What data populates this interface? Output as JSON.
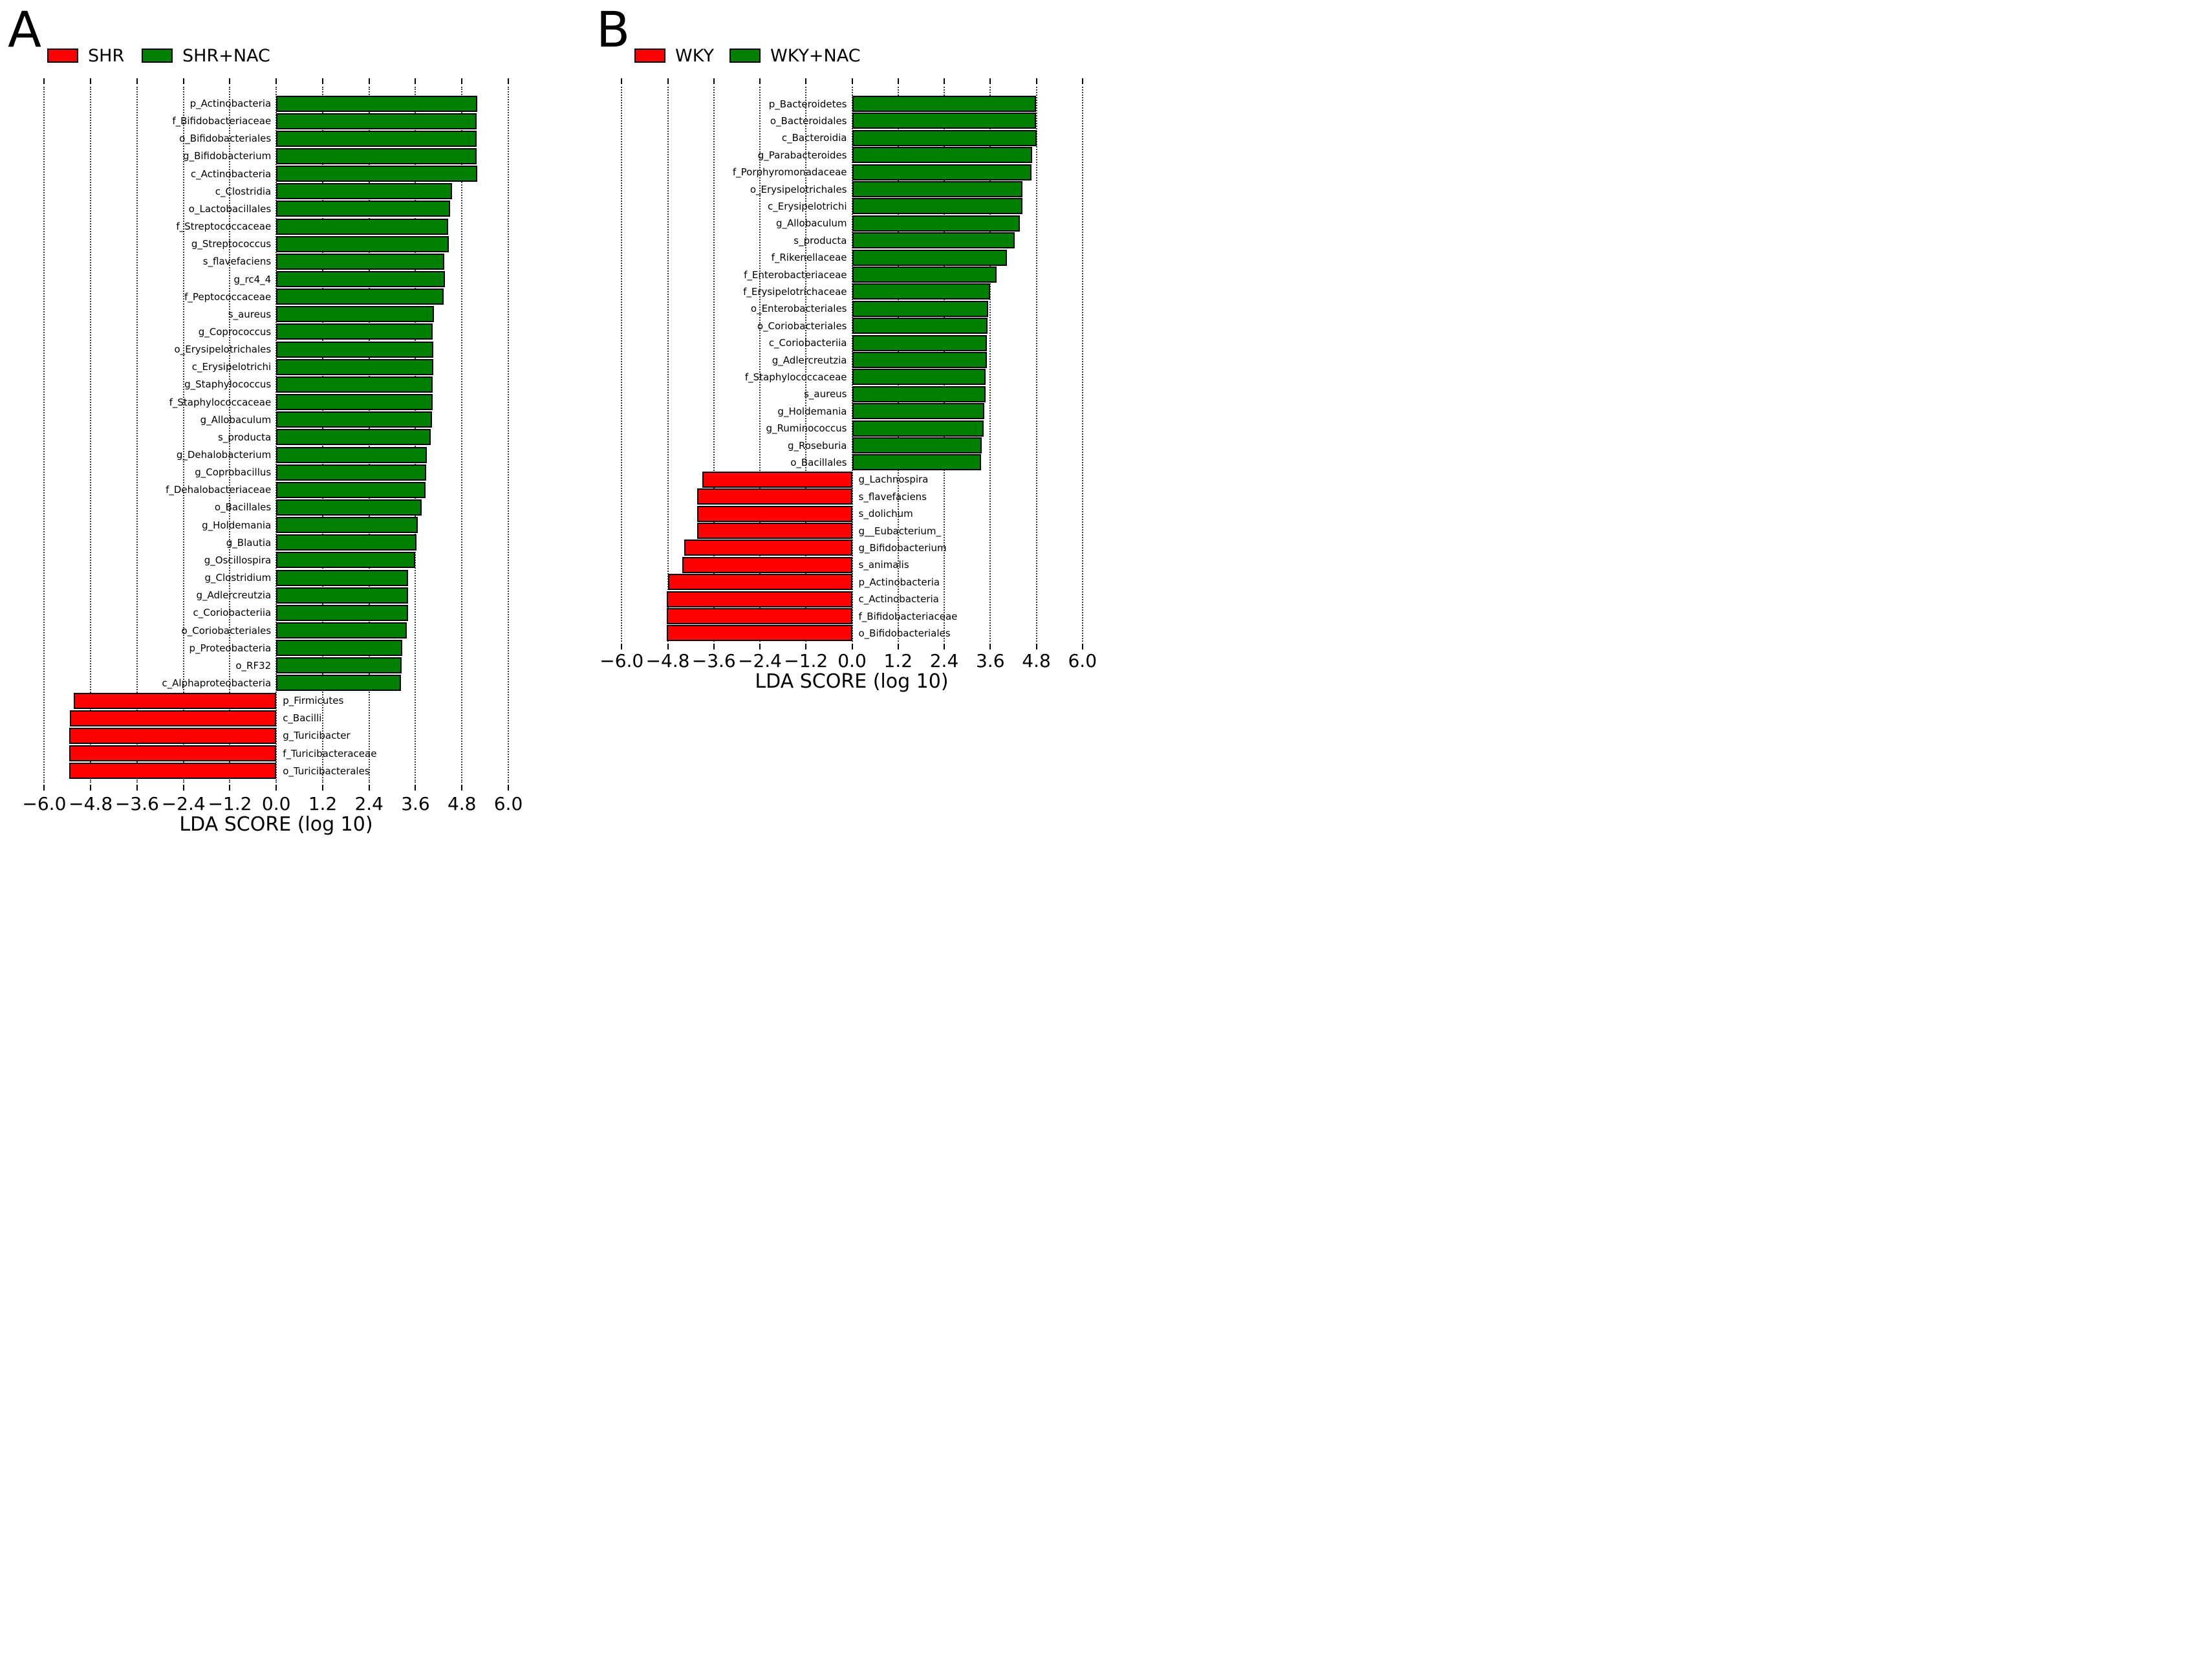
{
  "chart_data": [
    {
      "type": "bar",
      "orientation": "horizontal",
      "panel_label": "A",
      "xlabel": "LDA SCORE (log 10)",
      "x_ticks": [
        -6.0,
        -4.8,
        -3.6,
        -2.4,
        -1.2,
        0.0,
        1.2,
        2.4,
        3.6,
        4.8,
        6.0
      ],
      "xlim": [
        -6.7,
        6.7
      ],
      "grid": "dotted-vertical",
      "legend_position": "top-left",
      "legend": [
        {
          "label": "SHR",
          "color": "#ff0000"
        },
        {
          "label": "SHR+NAC",
          "color": "#008000"
        }
      ],
      "bars": [
        {
          "label": "p_Actinobacteria",
          "value": 5.2,
          "group": "SHR+NAC"
        },
        {
          "label": "f_Bifidobacteriaceae",
          "value": 5.18,
          "group": "SHR+NAC"
        },
        {
          "label": "o_Bifidobacteriales",
          "value": 5.18,
          "group": "SHR+NAC"
        },
        {
          "label": "g_Bifidobacterium",
          "value": 5.18,
          "group": "SHR+NAC"
        },
        {
          "label": "c_Actinobacteria",
          "value": 5.19,
          "group": "SHR+NAC"
        },
        {
          "label": "c_Clostridia",
          "value": 4.54,
          "group": "SHR+NAC"
        },
        {
          "label": "o_Lactobacillales",
          "value": 4.5,
          "group": "SHR+NAC"
        },
        {
          "label": "f_Streptococcaceae",
          "value": 4.45,
          "group": "SHR+NAC"
        },
        {
          "label": "g_Streptococcus",
          "value": 4.46,
          "group": "SHR+NAC"
        },
        {
          "label": "s_flavefaciens",
          "value": 4.35,
          "group": "SHR+NAC"
        },
        {
          "label": "g_rc4_4",
          "value": 4.36,
          "group": "SHR+NAC"
        },
        {
          "label": "f_Peptococcaceae",
          "value": 4.33,
          "group": "SHR+NAC"
        },
        {
          "label": "s_aureus",
          "value": 4.08,
          "group": "SHR+NAC"
        },
        {
          "label": "g_Coprococcus",
          "value": 4.05,
          "group": "SHR+NAC"
        },
        {
          "label": "o_Erysipelotrichales",
          "value": 4.06,
          "group": "SHR+NAC"
        },
        {
          "label": "c_Erysipelotrichi",
          "value": 4.06,
          "group": "SHR+NAC"
        },
        {
          "label": "g_Staphylococcus",
          "value": 4.04,
          "group": "SHR+NAC"
        },
        {
          "label": "f_Staphylococcaceae",
          "value": 4.04,
          "group": "SHR+NAC"
        },
        {
          "label": "g_Allobaculum",
          "value": 4.03,
          "group": "SHR+NAC"
        },
        {
          "label": "s_producta",
          "value": 3.99,
          "group": "SHR+NAC"
        },
        {
          "label": "g_Dehalobacterium",
          "value": 3.89,
          "group": "SHR+NAC"
        },
        {
          "label": "g_Coprobacillus",
          "value": 3.87,
          "group": "SHR+NAC"
        },
        {
          "label": "f_Dehalobacteriaceae",
          "value": 3.86,
          "group": "SHR+NAC"
        },
        {
          "label": "o_Bacillales",
          "value": 3.76,
          "group": "SHR+NAC"
        },
        {
          "label": "g_Holdemania",
          "value": 3.66,
          "group": "SHR+NAC"
        },
        {
          "label": "g_Blautia",
          "value": 3.63,
          "group": "SHR+NAC"
        },
        {
          "label": "g_Oscillospira",
          "value": 3.59,
          "group": "SHR+NAC"
        },
        {
          "label": "g_Clostridium",
          "value": 3.4,
          "group": "SHR+NAC"
        },
        {
          "label": "g_Adlercreutzia",
          "value": 3.4,
          "group": "SHR+NAC"
        },
        {
          "label": "c_Coriobacteriia",
          "value": 3.4,
          "group": "SHR+NAC"
        },
        {
          "label": "o_Coriobacteriales",
          "value": 3.37,
          "group": "SHR+NAC"
        },
        {
          "label": "p_Proteobacteria",
          "value": 3.26,
          "group": "SHR+NAC"
        },
        {
          "label": "o_RF32",
          "value": 3.24,
          "group": "SHR+NAC"
        },
        {
          "label": "c_Alphaproteobacteria",
          "value": 3.22,
          "group": "SHR+NAC"
        },
        {
          "label": "p_Firmicutes",
          "value": -5.23,
          "group": "SHR"
        },
        {
          "label": "c_Bacilli",
          "value": -5.34,
          "group": "SHR"
        },
        {
          "label": "g_Turicibacter",
          "value": -5.36,
          "group": "SHR"
        },
        {
          "label": "f_Turicibacteraceae",
          "value": -5.36,
          "group": "SHR"
        },
        {
          "label": "o_Turicibacterales",
          "value": -5.35,
          "group": "SHR"
        }
      ]
    },
    {
      "type": "bar",
      "orientation": "horizontal",
      "panel_label": "B",
      "xlabel": "LDA SCORE (log 10)",
      "x_ticks": [
        -6.0,
        -4.8,
        -3.6,
        -2.4,
        -1.2,
        0.0,
        1.2,
        2.4,
        3.6,
        4.8,
        6.0
      ],
      "xlim": [
        -6.7,
        6.7
      ],
      "grid": "dotted-vertical",
      "legend_position": "top-left",
      "legend": [
        {
          "label": "WKY",
          "color": "#ff0000"
        },
        {
          "label": "WKY+NAC",
          "color": "#008000"
        }
      ],
      "bars": [
        {
          "label": "p_Bacteroidetes",
          "value": 4.79,
          "group": "WKY+NAC"
        },
        {
          "label": "o_Bacteroidales",
          "value": 4.79,
          "group": "WKY+NAC"
        },
        {
          "label": "c_Bacteroidia",
          "value": 4.8,
          "group": "WKY+NAC"
        },
        {
          "label": "g_Parabacteroides",
          "value": 4.69,
          "group": "WKY+NAC"
        },
        {
          "label": "f_Porphyromonadaceae",
          "value": 4.68,
          "group": "WKY+NAC"
        },
        {
          "label": "o_Erysipelotrichales",
          "value": 4.43,
          "group": "WKY+NAC"
        },
        {
          "label": "c_Erysipelotrichi",
          "value": 4.43,
          "group": "WKY+NAC"
        },
        {
          "label": "g_Allobaculum",
          "value": 4.37,
          "group": "WKY+NAC"
        },
        {
          "label": "s_producta",
          "value": 4.23,
          "group": "WKY+NAC"
        },
        {
          "label": "f_Rikenellaceae",
          "value": 4.03,
          "group": "WKY+NAC"
        },
        {
          "label": "f_Enterobacteriaceae",
          "value": 3.76,
          "group": "WKY+NAC"
        },
        {
          "label": "f_Erysipelotrichaceae",
          "value": 3.6,
          "group": "WKY+NAC"
        },
        {
          "label": "o_Enterobacteriales",
          "value": 3.55,
          "group": "WKY+NAC"
        },
        {
          "label": "o_Coriobacteriales",
          "value": 3.52,
          "group": "WKY+NAC"
        },
        {
          "label": "c_Coriobacteriia",
          "value": 3.51,
          "group": "WKY+NAC"
        },
        {
          "label": "g_Adlercreutzia",
          "value": 3.51,
          "group": "WKY+NAC"
        },
        {
          "label": "f_Staphylococcaceae",
          "value": 3.48,
          "group": "WKY+NAC"
        },
        {
          "label": "s_aureus",
          "value": 3.47,
          "group": "WKY+NAC"
        },
        {
          "label": "g_Holdemania",
          "value": 3.44,
          "group": "WKY+NAC"
        },
        {
          "label": "g_Ruminococcus",
          "value": 3.43,
          "group": "WKY+NAC"
        },
        {
          "label": "g_Roseburia",
          "value": 3.37,
          "group": "WKY+NAC"
        },
        {
          "label": "o_Bacillales",
          "value": 3.36,
          "group": "WKY+NAC"
        },
        {
          "label": "g_Lachnospira",
          "value": -3.9,
          "group": "WKY"
        },
        {
          "label": "s_flavefaciens",
          "value": -4.04,
          "group": "WKY"
        },
        {
          "label": "s_dolichum",
          "value": -4.04,
          "group": "WKY"
        },
        {
          "label": "g__Eubacterium_",
          "value": -4.04,
          "group": "WKY"
        },
        {
          "label": "g_Bifidobacterium",
          "value": -4.37,
          "group": "WKY"
        },
        {
          "label": "s_animalis",
          "value": -4.42,
          "group": "WKY"
        },
        {
          "label": "p_Actinobacteria",
          "value": -4.8,
          "group": "WKY"
        },
        {
          "label": "c_Actinobacteria",
          "value": -4.82,
          "group": "WKY"
        },
        {
          "label": "f_Bifidobacteriaceae",
          "value": -4.83,
          "group": "WKY"
        },
        {
          "label": "o_Bifidobacteriales",
          "value": -4.83,
          "group": "WKY"
        }
      ]
    }
  ]
}
